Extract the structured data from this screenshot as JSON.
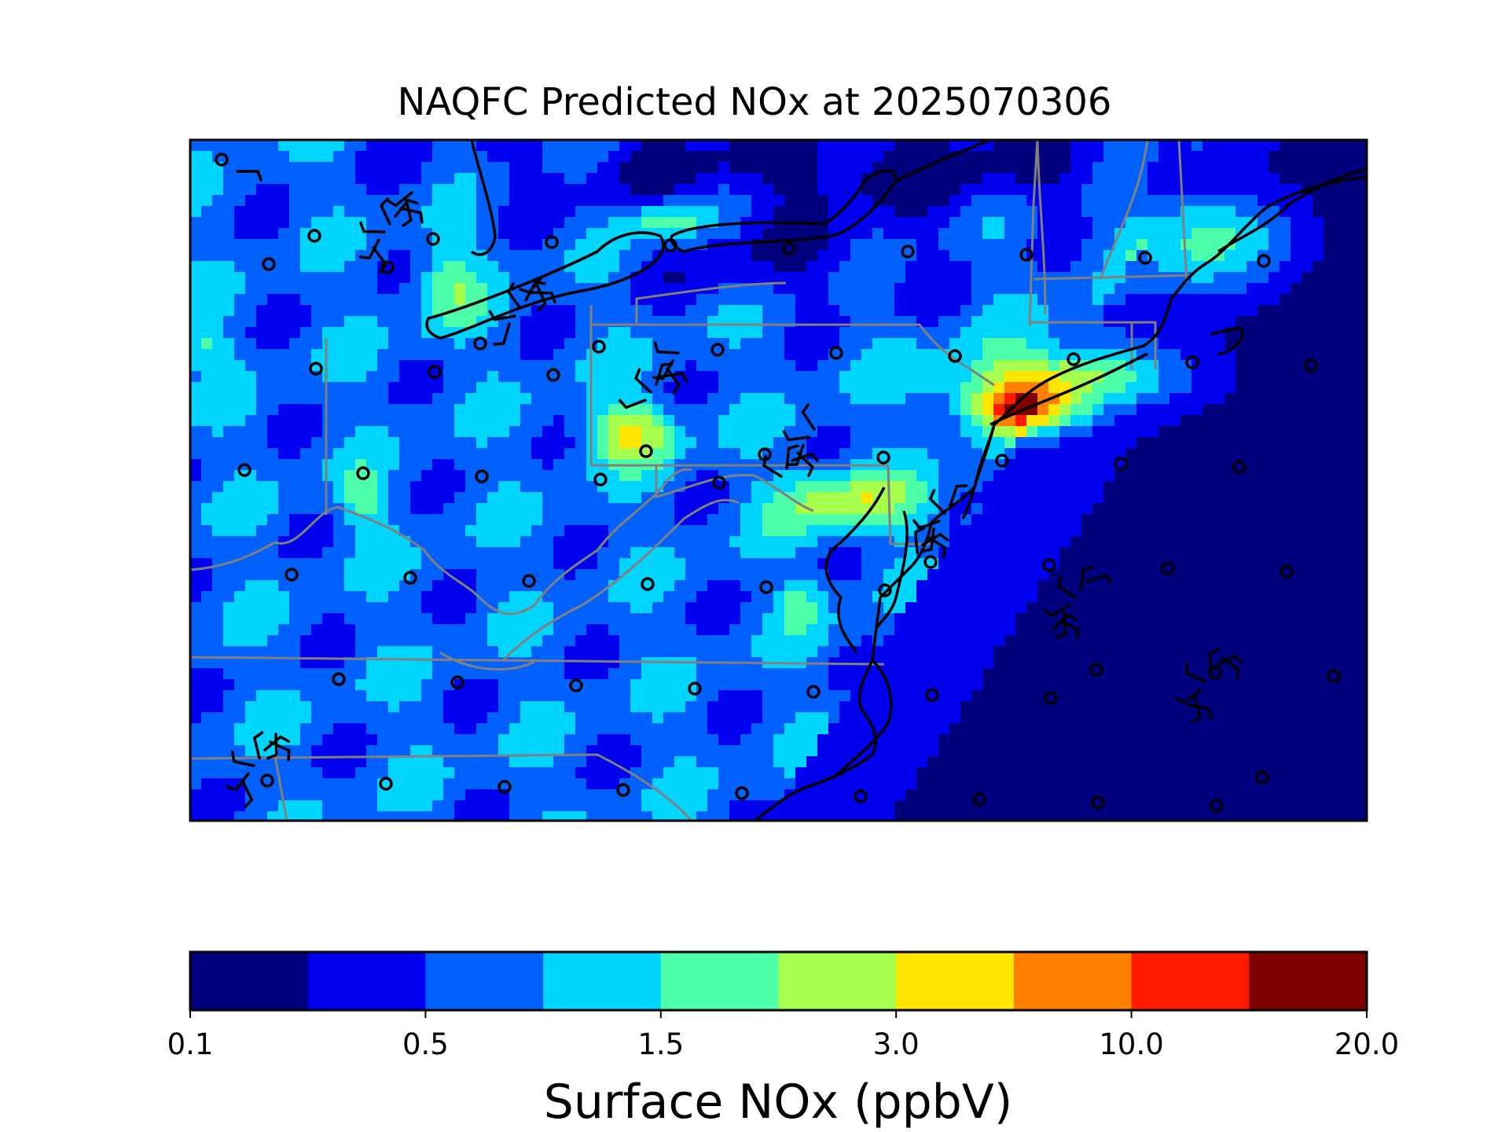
{
  "title": "NAQFC Predicted NOx at 2025070306",
  "map": {
    "variable": "Surface NOx",
    "units": "ppbV",
    "layers": [
      "gridded-concentration",
      "wind-barbs",
      "monitor-sites",
      "state-borders",
      "coastlines",
      "great-lakes-shorelines"
    ]
  },
  "colorbar": {
    "label": "Surface NOx (ppbV)",
    "levels": [
      0.1,
      0.3,
      0.5,
      1.0,
      1.5,
      2.0,
      3.0,
      5.0,
      10.0,
      15.0,
      20.0
    ],
    "colors": [
      "#00007f",
      "#0000f1",
      "#0061ff",
      "#00d5ff",
      "#4effa9",
      "#a6ff4d",
      "#ffe500",
      "#ff7f00",
      "#ff1a00",
      "#7f0000"
    ],
    "tick_labels": [
      "0.1",
      "0.5",
      "1.5",
      "3.0",
      "10.0",
      "20.0"
    ]
  }
}
